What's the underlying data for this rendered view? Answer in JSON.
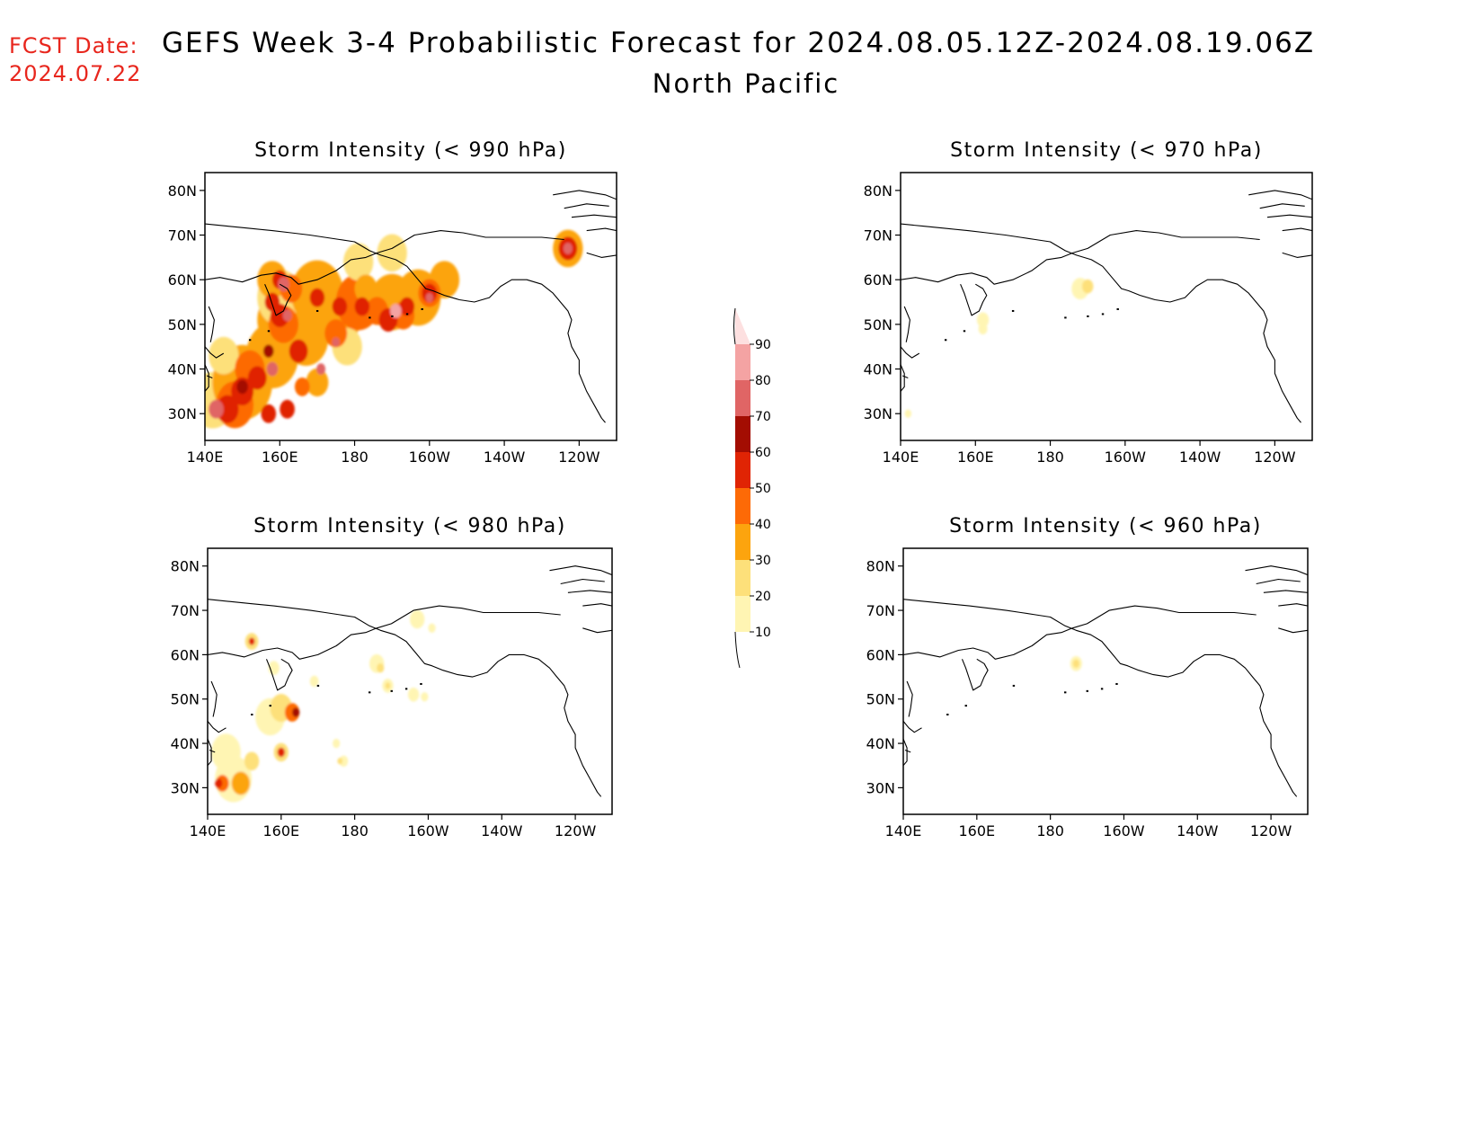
{
  "header": {
    "fcst_label": "FCST Date:",
    "fcst_date": "2024.07.22",
    "title": "GEFS Week 3-4 Probabilistic Forecast for 2024.08.05.12Z-2024.08.19.06Z",
    "region": "North Pacific"
  },
  "axes": {
    "lat_ticks": [
      "80N",
      "70N",
      "60N",
      "50N",
      "40N",
      "30N"
    ],
    "lon_ticks": [
      "140E",
      "160E",
      "180",
      "160W",
      "140W",
      "120W"
    ]
  },
  "panels": [
    {
      "id": "p990",
      "title": "Storm Intensity (< 990 hPa)"
    },
    {
      "id": "p970",
      "title": "Storm Intensity (< 970 hPa)"
    },
    {
      "id": "p980",
      "title": "Storm Intensity (< 980 hPa)"
    },
    {
      "id": "p960",
      "title": "Storm Intensity (< 960 hPa)"
    }
  ],
  "colorbar": {
    "labels": [
      "10",
      "20",
      "30",
      "40",
      "50",
      "60",
      "70",
      "80",
      "90"
    ],
    "colors": [
      "#fff5b3",
      "#fde07a",
      "#fca40e",
      "#fd6a06",
      "#e02404",
      "#a30d02",
      "#e06565",
      "#f4a3a3",
      "#fde0e0"
    ]
  }
}
